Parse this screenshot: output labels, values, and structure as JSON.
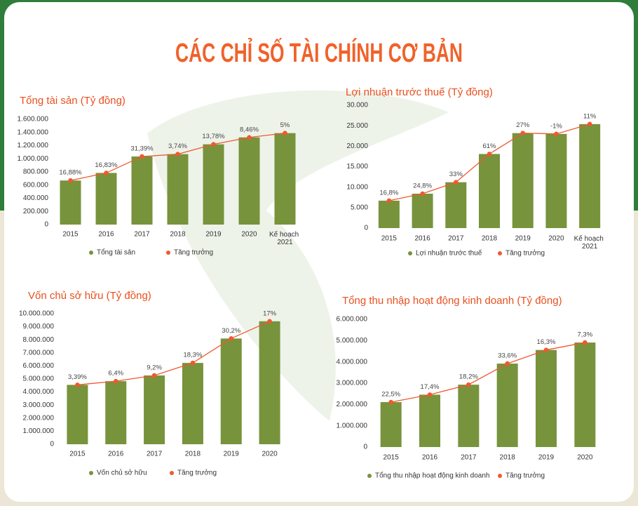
{
  "title": "CÁC CHỈ SỐ TÀI CHÍNH CƠ BẢN",
  "chart_data": [
    {
      "type": "bar_line",
      "title": "Tổng tài sản (Tỷ đồng)",
      "categories": [
        "2015",
        "2016",
        "2017",
        "2018",
        "2019",
        "2020",
        "Kế hoạch 2021"
      ],
      "series": [
        {
          "name": "Tổng tài sản",
          "color": "#77933c",
          "values": [
            670000,
            785000,
            1035000,
            1070000,
            1220000,
            1325000,
            1390000
          ]
        },
        {
          "name": "Tăng trưởng",
          "color": "#ee5a2f",
          "values": [
            16.88,
            16.83,
            31.39,
            3.74,
            13.78,
            8.46,
            5
          ],
          "value_labels": [
            "16,88%",
            "16,83%",
            "31,39%",
            "3,74%",
            "13,78%",
            "8,46%",
            "5%"
          ]
        }
      ],
      "ylim": [
        0,
        1600000
      ],
      "yticks": [
        0,
        {
          "value": 200000,
          "label": "200.000"
        },
        {
          "value": 400000,
          "label": "400.000"
        },
        {
          "value": 600000,
          "label": "600.000"
        },
        {
          "value": 800000,
          "label": "800.000"
        },
        {
          "value": 1000000,
          "label": "1.000.000"
        },
        {
          "value": 1200000,
          "label": "1.200.000"
        },
        {
          "value": 1400000,
          "label": "1.400.000"
        },
        {
          "value": 1600000,
          "label": "1.600.000"
        }
      ],
      "grid": false
    },
    {
      "type": "bar_line",
      "title": "Lợi nhuận trước thuế (Tỷ đồng)",
      "categories": [
        "2015",
        "2016",
        "2017",
        "2018",
        "2019",
        "2020",
        "Kế hoạch 2021"
      ],
      "series": [
        {
          "name": "Lợi nhuận trước thuế",
          "color": "#77933c",
          "values": [
            6700,
            8400,
            11200,
            18100,
            23200,
            23000,
            25400
          ]
        },
        {
          "name": "Tăng trưởng",
          "color": "#ee5a2f",
          "values": [
            16.8,
            24.8,
            33,
            61,
            27,
            -1,
            11
          ],
          "value_labels": [
            "16,8%",
            "24,8%",
            "33%",
            "61%",
            "27%",
            "-1%",
            "11%"
          ]
        }
      ],
      "ylim": [
        0,
        30000
      ],
      "yticks": [
        0,
        {
          "value": 5000,
          "label": "5.000"
        },
        {
          "value": 10000,
          "label": "10.000"
        },
        {
          "value": 15000,
          "label": "15.000"
        },
        {
          "value": 20000,
          "label": "20.000"
        },
        {
          "value": 25000,
          "label": "25.000"
        },
        {
          "value": 30000,
          "label": "30.000"
        }
      ],
      "grid": false
    },
    {
      "type": "bar_line",
      "title": "Vốn chủ sở hữu (Tỷ đồng)",
      "categories": [
        "2015",
        "2016",
        "2017",
        "2018",
        "2019",
        "2020"
      ],
      "series": [
        {
          "name": "Vốn chủ sở hữu",
          "color": "#77933c",
          "values": [
            4550000,
            4830000,
            5270000,
            6230000,
            8100000,
            9420000
          ]
        },
        {
          "name": "Tăng trưởng",
          "color": "#ee5a2f",
          "values": [
            3.39,
            6.4,
            9.2,
            18.3,
            30.2,
            17
          ],
          "value_labels": [
            "3,39%",
            "6,4%",
            "9,2%",
            "18,3%",
            "30,2%",
            "17%"
          ]
        }
      ],
      "ylim": [
        0,
        10000000
      ],
      "yticks": [
        0,
        {
          "value": 1000000,
          "label": "1.000.000"
        },
        {
          "value": 2000000,
          "label": "2.000.000"
        },
        {
          "value": 3000000,
          "label": "3.000.000"
        },
        {
          "value": 4000000,
          "label": "4.000.000"
        },
        {
          "value": 5000000,
          "label": "5.000.000"
        },
        {
          "value": 6000000,
          "label": "6.000.000"
        },
        {
          "value": 7000000,
          "label": "7.000.000"
        },
        {
          "value": 8000000,
          "label": "8.000.000"
        },
        {
          "value": 9000000,
          "label": "9.000.000"
        },
        {
          "value": 10000000,
          "label": "10.000.000"
        }
      ],
      "grid": false
    },
    {
      "type": "bar_line",
      "title": "Tổng thu nhập hoạt động kinh doanh (Tỷ đồng)",
      "categories": [
        "2015",
        "2016",
        "2017",
        "2018",
        "2019",
        "2020"
      ],
      "series": [
        {
          "name": "Tổng thu nhập hoạt động kinh doanh",
          "color": "#77933c",
          "values": [
            2110000,
            2460000,
            2930000,
            3920000,
            4560000,
            4910000
          ]
        },
        {
          "name": "Tăng trưởng",
          "color": "#ee5a2f",
          "values": [
            22.5,
            17.4,
            18.2,
            33.6,
            16.3,
            7.3
          ],
          "value_labels": [
            "22,5%",
            "17,4%",
            "18,2%",
            "33,6%",
            "16,3%",
            "7,3%"
          ]
        }
      ],
      "ylim": [
        0,
        6000000
      ],
      "yticks": [
        0,
        {
          "value": 1000000,
          "label": "1.000.000"
        },
        {
          "value": 2000000,
          "label": "2.000.000"
        },
        {
          "value": 3000000,
          "label": "3.000.000"
        },
        {
          "value": 4000000,
          "label": "4.000.000"
        },
        {
          "value": 5000000,
          "label": "5.000.000"
        },
        {
          "value": 6000000,
          "label": "6.000.000"
        }
      ],
      "grid": false
    }
  ]
}
